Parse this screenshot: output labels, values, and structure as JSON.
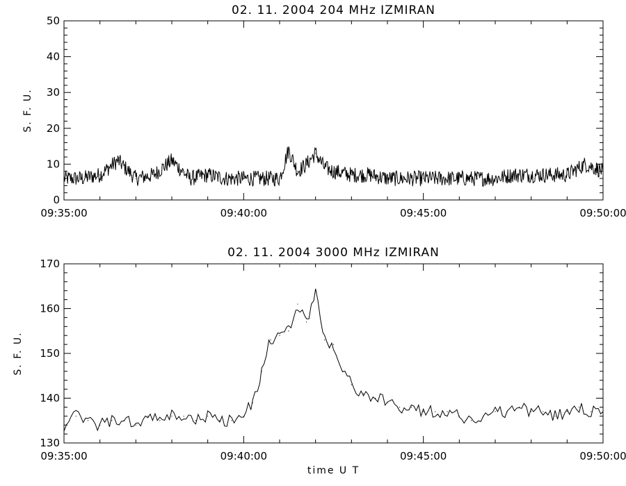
{
  "chart_data": [
    {
      "type": "line",
      "title": "02. 11. 2004   204 MHz   IZMIRAN",
      "ylabel": "S. F. U.",
      "xlabel": "",
      "xlim": [
        "09:35:00",
        "09:50:00"
      ],
      "ylim": [
        0,
        50
      ],
      "x_ticks": [
        "09:35:00",
        "09:40:00",
        "09:45:00",
        "09:50:00"
      ],
      "y_ticks": [
        "0",
        "10",
        "20",
        "30",
        "40",
        "50"
      ],
      "series": [
        {
          "values_note_x": "time UT (HH:MM:SS)",
          "x": [
            "09:35:00",
            "09:35:30",
            "09:36:00",
            "09:36:30",
            "09:37:00",
            "09:37:30",
            "09:38:00",
            "09:38:30",
            "09:39:00",
            "09:39:30",
            "09:40:00",
            "09:40:30",
            "09:41:00",
            "09:41:15",
            "09:41:30",
            "09:41:45",
            "09:42:00",
            "09:42:15",
            "09:42:30",
            "09:43:00",
            "09:43:30",
            "09:44:00",
            "09:44:30",
            "09:45:00",
            "09:45:30",
            "09:46:00",
            "09:46:30",
            "09:47:00",
            "09:47:30",
            "09:48:00",
            "09:48:30",
            "09:49:00",
            "09:49:30",
            "09:50:00"
          ],
          "y": [
            6,
            6,
            7,
            11,
            6,
            7,
            11,
            6,
            7,
            6,
            6,
            6,
            6,
            14,
            8,
            10,
            13,
            9,
            8,
            7,
            7,
            6,
            6,
            6,
            6,
            6,
            6,
            6,
            7,
            7,
            7,
            7,
            10,
            8
          ]
        }
      ]
    },
    {
      "type": "line",
      "title": "02. 11. 2004   3000 MHz   IZMIRAN",
      "ylabel": "S. F. U.",
      "xlabel": "time  U T",
      "xlim": [
        "09:35:00",
        "09:50:00"
      ],
      "ylim": [
        130,
        170
      ],
      "x_ticks": [
        "09:35:00",
        "09:40:00",
        "09:45:00",
        "09:50:00"
      ],
      "y_ticks": [
        "130",
        "140",
        "150",
        "160",
        "170"
      ],
      "series": [
        {
          "x": [
            "09:35:00",
            "09:35:20",
            "09:35:40",
            "09:36:00",
            "09:36:20",
            "09:36:40",
            "09:37:00",
            "09:37:20",
            "09:37:40",
            "09:38:00",
            "09:38:20",
            "09:38:40",
            "09:39:00",
            "09:39:20",
            "09:39:40",
            "09:40:00",
            "09:40:15",
            "09:40:30",
            "09:40:45",
            "09:41:00",
            "09:41:15",
            "09:41:30",
            "09:41:45",
            "09:42:00",
            "09:42:15",
            "09:42:30",
            "09:42:45",
            "09:43:00",
            "09:43:20",
            "09:43:40",
            "09:44:00",
            "09:44:20",
            "09:44:40",
            "09:45:00",
            "09:45:20",
            "09:45:40",
            "09:46:00",
            "09:46:20",
            "09:46:40",
            "09:47:00",
            "09:47:20",
            "09:47:40",
            "09:48:00",
            "09:48:20",
            "09:48:40",
            "09:49:00",
            "09:49:20",
            "09:49:40",
            "09:50:00"
          ],
          "y": [
            134,
            136,
            135,
            134,
            135,
            135,
            134,
            136,
            135,
            136,
            136,
            135,
            136,
            135,
            135,
            136,
            139,
            146,
            153,
            154,
            155,
            161,
            157,
            164,
            153,
            152,
            146,
            143,
            141,
            140,
            139,
            138,
            138,
            137,
            137,
            137,
            136,
            135,
            136,
            137,
            137,
            138,
            137,
            137,
            136,
            137,
            138,
            137,
            137
          ]
        }
      ]
    }
  ]
}
